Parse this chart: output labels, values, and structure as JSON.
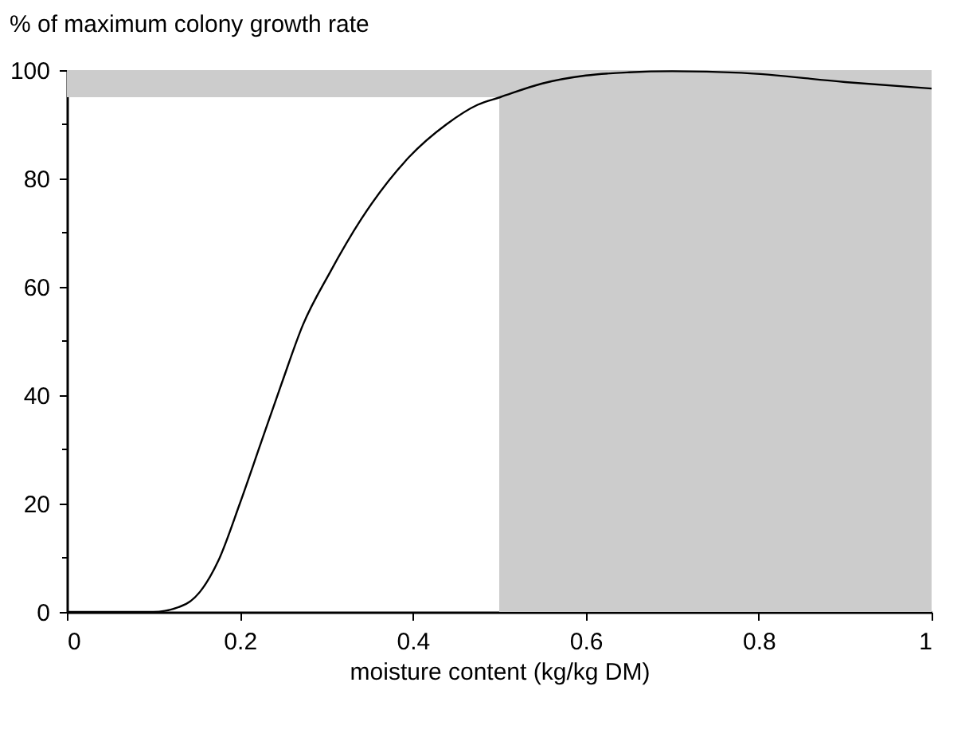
{
  "chart_data": {
    "type": "line",
    "ylabel": "% of maximum colony growth rate",
    "xlabel": "moisture content (kg/kg DM)",
    "x": [
      0,
      0.1,
      0.138,
      0.175,
      0.2,
      0.224,
      0.248,
      0.273,
      0.304,
      0.34,
      0.396,
      0.439,
      0.475,
      0.501,
      0.549,
      0.6,
      0.65,
      0.7,
      0.78,
      0.9,
      1.0
    ],
    "series": [
      {
        "color": "#000000",
        "values": [
          0,
          0,
          1.5,
          9.4,
          20,
          31,
          42,
          53,
          62.6,
          72.4,
          84,
          90,
          93.6,
          95,
          97.5,
          99,
          99.6,
          99.8,
          99.5,
          97.8,
          96.6
        ]
      }
    ],
    "xlim": [
      0,
      1
    ],
    "xticks": [
      0,
      0.2,
      0.4,
      0.6,
      0.8,
      1
    ],
    "ylim": [
      0,
      100
    ],
    "yticks": [
      0,
      20,
      40,
      60,
      80,
      100
    ],
    "bands": [
      {
        "axis": "x",
        "from": 0.5,
        "to": 1,
        "color": "#cccccc"
      },
      {
        "axis": "y",
        "from": 95,
        "to": 100,
        "color": "#cccccc"
      }
    ],
    "grid": false,
    "marker": "none",
    "line_style": "solid"
  }
}
